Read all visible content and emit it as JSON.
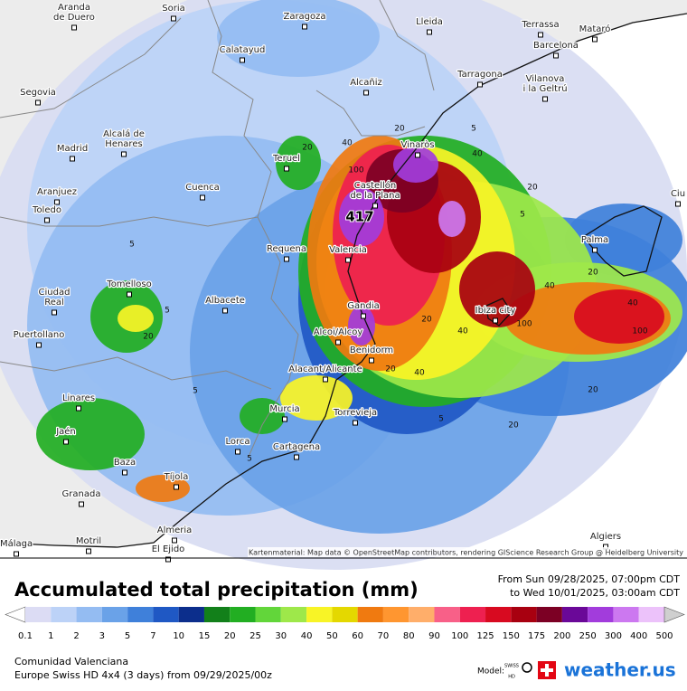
{
  "map": {
    "cities": [
      {
        "lines": [
          "Aranda",
          "de Duero"
        ]
      },
      {
        "lines": [
          "Soria"
        ]
      },
      {
        "lines": [
          "Zaragoza"
        ]
      },
      {
        "lines": [
          "Lleida"
        ]
      },
      {
        "lines": [
          "Terrassa"
        ]
      },
      {
        "lines": [
          "Mataró"
        ]
      },
      {
        "lines": [
          "Barcelona"
        ]
      },
      {
        "lines": [
          "Calatayud"
        ]
      },
      {
        "lines": [
          "Tarragona"
        ]
      },
      {
        "lines": [
          "Vilanova",
          "i la Geltrú"
        ]
      },
      {
        "lines": [
          "Segovia"
        ]
      },
      {
        "lines": [
          "Alcañiz"
        ]
      },
      {
        "lines": [
          "Alcalá de",
          "Henares"
        ]
      },
      {
        "lines": [
          "Madrid"
        ]
      },
      {
        "lines": [
          "Vinaròs"
        ]
      },
      {
        "lines": [
          "Teruel"
        ]
      },
      {
        "lines": [
          "Castellón",
          "de la Plana"
        ]
      },
      {
        "lines": [
          "Aranjuez"
        ]
      },
      {
        "lines": [
          "Cuenca"
        ]
      },
      {
        "lines": [
          "Toledo"
        ]
      },
      {
        "lines": [
          "Palma"
        ]
      },
      {
        "lines": [
          "Requena"
        ]
      },
      {
        "lines": [
          "Valencia"
        ]
      },
      {
        "lines": [
          "Tomelloso"
        ]
      },
      {
        "lines": [
          "Albacete"
        ]
      },
      {
        "lines": [
          "Ciudad",
          "Real"
        ]
      },
      {
        "lines": [
          "Gandia"
        ]
      },
      {
        "lines": [
          "Ibiza city"
        ]
      },
      {
        "lines": [
          "Puertollano"
        ]
      },
      {
        "lines": [
          "Alcoi/Alcoy"
        ]
      },
      {
        "lines": [
          "Benidorm"
        ]
      },
      {
        "lines": [
          "Alacant/Alicante"
        ]
      },
      {
        "lines": [
          "Linares"
        ]
      },
      {
        "lines": [
          "Murcia"
        ]
      },
      {
        "lines": [
          "Torrevieja"
        ]
      },
      {
        "lines": [
          "Jaén"
        ]
      },
      {
        "lines": [
          "Lorca"
        ]
      },
      {
        "lines": [
          "Baza"
        ]
      },
      {
        "lines": [
          "Cartagena"
        ]
      },
      {
        "lines": [
          "Tíjola"
        ]
      },
      {
        "lines": [
          "Granada"
        ]
      },
      {
        "lines": [
          "Almeria"
        ]
      },
      {
        "lines": [
          "Algiers"
        ]
      },
      {
        "lines": [
          "Motril"
        ]
      },
      {
        "lines": [
          "El Ejido"
        ]
      },
      {
        "lines": [
          "Málaga"
        ]
      },
      {
        "lines": [
          "Ciu"
        ]
      }
    ],
    "max_label": "417",
    "contour_labels": [
      "5",
      "40",
      "20",
      "40",
      "100",
      "20",
      "5",
      "20",
      "40",
      "100",
      "20",
      "40",
      "40",
      "20",
      "5",
      "20",
      "5",
      "20",
      "5",
      "5",
      "20",
      "40",
      "100",
      "20",
      "5"
    ],
    "attribution": "Kartenmaterial: Map data © OpenStreetMap contributors, rendering GIScience Research Group @ Heidelberg University"
  },
  "legend": {
    "title": "Accumulated total precipitation (mm)",
    "period": [
      "From Sun 09/28/2025, 07:00pm CDT",
      "to Wed 10/01/2025, 03:00am CDT"
    ],
    "levels": [
      {
        "value": 0.1,
        "color": "#dcdcf4"
      },
      {
        "value": 1,
        "color": "#bcd2f7"
      },
      {
        "value": 2,
        "color": "#94bcf2"
      },
      {
        "value": 3,
        "color": "#6aa2e8"
      },
      {
        "value": 5,
        "color": "#3f80da"
      },
      {
        "value": 7,
        "color": "#1f58c4"
      },
      {
        "value": 10,
        "color": "#0c2e8c"
      },
      {
        "value": 15,
        "color": "#12801a"
      },
      {
        "value": 20,
        "color": "#22ae22"
      },
      {
        "value": 25,
        "color": "#62d63a"
      },
      {
        "value": 30,
        "color": "#9ee84a"
      },
      {
        "value": 40,
        "color": "#f8f426"
      },
      {
        "value": 50,
        "color": "#e4d800"
      },
      {
        "value": 60,
        "color": "#f07a10"
      },
      {
        "value": 70,
        "color": "#ff9630"
      },
      {
        "value": 80,
        "color": "#ffae6a"
      },
      {
        "value": 90,
        "color": "#f86088"
      },
      {
        "value": 100,
        "color": "#ee2050"
      },
      {
        "value": 125,
        "color": "#d80a20"
      },
      {
        "value": 150,
        "color": "#a80010"
      },
      {
        "value": 175,
        "color": "#7c0024"
      },
      {
        "value": 200,
        "color": "#6a0898"
      },
      {
        "value": 250,
        "color": "#a23cdc"
      },
      {
        "value": 300,
        "color": "#cc78f0"
      },
      {
        "value": 400,
        "color": "#ecc2fa"
      },
      {
        "value": 500,
        "color": "#f6ecfc"
      }
    ]
  },
  "footer": {
    "region": "Comunidad Valenciana",
    "model_line": "Europe Swiss HD 4x4 (3 days) from 09/29/2025/00z",
    "model_label": "Model:",
    "badge": [
      "SWISS",
      "HD"
    ],
    "brand": "weather.us"
  }
}
